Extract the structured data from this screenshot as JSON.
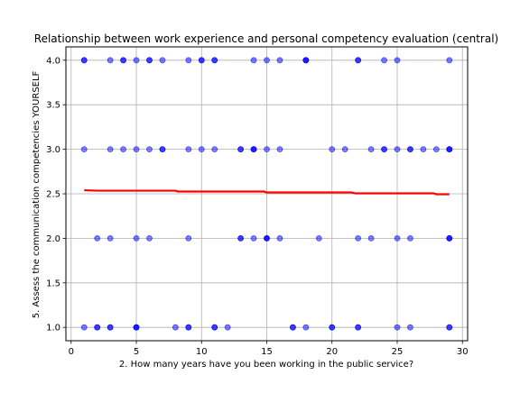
{
  "chart_data": {
    "type": "scatter",
    "title": "Relationship between work experience and personal competency evaluation (central)",
    "xlabel": "2. How many years have you been working in the public service?",
    "ylabel": "5. Assess the communication competencies YOURSELF",
    "xlim": [
      -0.4,
      30.4
    ],
    "ylim": [
      0.85,
      4.15
    ],
    "xticks": [
      0,
      5,
      10,
      15,
      20,
      25,
      30
    ],
    "yticks": [
      1.0,
      1.5,
      2.0,
      2.5,
      3.0,
      3.5,
      4.0
    ],
    "grid": true,
    "point_color": "#0000ff",
    "line_color": "#ff0000",
    "points": [
      {
        "x": 1,
        "y": 4
      },
      {
        "x": 1,
        "y": 4
      },
      {
        "x": 3,
        "y": 4
      },
      {
        "x": 4,
        "y": 4
      },
      {
        "x": 4,
        "y": 4
      },
      {
        "x": 5,
        "y": 4
      },
      {
        "x": 6,
        "y": 4
      },
      {
        "x": 6,
        "y": 4
      },
      {
        "x": 7,
        "y": 4
      },
      {
        "x": 9,
        "y": 4
      },
      {
        "x": 10,
        "y": 4
      },
      {
        "x": 10,
        "y": 4
      },
      {
        "x": 11,
        "y": 4
      },
      {
        "x": 11,
        "y": 4
      },
      {
        "x": 14,
        "y": 4
      },
      {
        "x": 15,
        "y": 4
      },
      {
        "x": 16,
        "y": 4
      },
      {
        "x": 18,
        "y": 4
      },
      {
        "x": 18,
        "y": 4
      },
      {
        "x": 18,
        "y": 4
      },
      {
        "x": 22,
        "y": 4
      },
      {
        "x": 22,
        "y": 4
      },
      {
        "x": 24,
        "y": 4
      },
      {
        "x": 25,
        "y": 4
      },
      {
        "x": 29,
        "y": 4
      },
      {
        "x": 1,
        "y": 3
      },
      {
        "x": 3,
        "y": 3
      },
      {
        "x": 4,
        "y": 3
      },
      {
        "x": 5,
        "y": 3
      },
      {
        "x": 6,
        "y": 3
      },
      {
        "x": 7,
        "y": 3
      },
      {
        "x": 7,
        "y": 3
      },
      {
        "x": 9,
        "y": 3
      },
      {
        "x": 10,
        "y": 3
      },
      {
        "x": 11,
        "y": 3
      },
      {
        "x": 13,
        "y": 3
      },
      {
        "x": 13,
        "y": 3
      },
      {
        "x": 14,
        "y": 3
      },
      {
        "x": 14,
        "y": 3
      },
      {
        "x": 14,
        "y": 3
      },
      {
        "x": 15,
        "y": 3
      },
      {
        "x": 16,
        "y": 3
      },
      {
        "x": 20,
        "y": 3
      },
      {
        "x": 21,
        "y": 3
      },
      {
        "x": 23,
        "y": 3
      },
      {
        "x": 24,
        "y": 3
      },
      {
        "x": 24,
        "y": 3
      },
      {
        "x": 25,
        "y": 3
      },
      {
        "x": 26,
        "y": 3
      },
      {
        "x": 26,
        "y": 3
      },
      {
        "x": 27,
        "y": 3
      },
      {
        "x": 28,
        "y": 3
      },
      {
        "x": 29,
        "y": 3
      },
      {
        "x": 29,
        "y": 3
      },
      {
        "x": 29,
        "y": 3
      },
      {
        "x": 2,
        "y": 2
      },
      {
        "x": 3,
        "y": 2
      },
      {
        "x": 5,
        "y": 2
      },
      {
        "x": 6,
        "y": 2
      },
      {
        "x": 9,
        "y": 2
      },
      {
        "x": 13,
        "y": 2
      },
      {
        "x": 13,
        "y": 2
      },
      {
        "x": 14,
        "y": 2
      },
      {
        "x": 15,
        "y": 2
      },
      {
        "x": 15,
        "y": 2
      },
      {
        "x": 15,
        "y": 2
      },
      {
        "x": 16,
        "y": 2
      },
      {
        "x": 19,
        "y": 2
      },
      {
        "x": 22,
        "y": 2
      },
      {
        "x": 23,
        "y": 2
      },
      {
        "x": 25,
        "y": 2
      },
      {
        "x": 26,
        "y": 2
      },
      {
        "x": 29,
        "y": 2
      },
      {
        "x": 29,
        "y": 2
      },
      {
        "x": 29,
        "y": 2
      },
      {
        "x": 1,
        "y": 1
      },
      {
        "x": 2,
        "y": 1
      },
      {
        "x": 2,
        "y": 1
      },
      {
        "x": 3,
        "y": 1
      },
      {
        "x": 3,
        "y": 1
      },
      {
        "x": 5,
        "y": 1
      },
      {
        "x": 5,
        "y": 1
      },
      {
        "x": 5,
        "y": 1
      },
      {
        "x": 8,
        "y": 1
      },
      {
        "x": 9,
        "y": 1
      },
      {
        "x": 9,
        "y": 1
      },
      {
        "x": 11,
        "y": 1
      },
      {
        "x": 11,
        "y": 1
      },
      {
        "x": 12,
        "y": 1
      },
      {
        "x": 17,
        "y": 1
      },
      {
        "x": 17,
        "y": 1
      },
      {
        "x": 18,
        "y": 1
      },
      {
        "x": 20,
        "y": 1
      },
      {
        "x": 20,
        "y": 1
      },
      {
        "x": 22,
        "y": 1
      },
      {
        "x": 22,
        "y": 1
      },
      {
        "x": 25,
        "y": 1
      },
      {
        "x": 26,
        "y": 1
      },
      {
        "x": 29,
        "y": 1
      },
      {
        "x": 29,
        "y": 1
      }
    ],
    "trend_line": [
      {
        "x": 1,
        "y": 2.54
      },
      {
        "x": 2,
        "y": 2.535
      },
      {
        "x": 8,
        "y": 2.535
      },
      {
        "x": 8.2,
        "y": 2.525
      },
      {
        "x": 14.8,
        "y": 2.525
      },
      {
        "x": 15,
        "y": 2.515
      },
      {
        "x": 21.5,
        "y": 2.515
      },
      {
        "x": 21.8,
        "y": 2.505
      },
      {
        "x": 27.8,
        "y": 2.505
      },
      {
        "x": 28,
        "y": 2.495
      },
      {
        "x": 29,
        "y": 2.495
      }
    ]
  }
}
